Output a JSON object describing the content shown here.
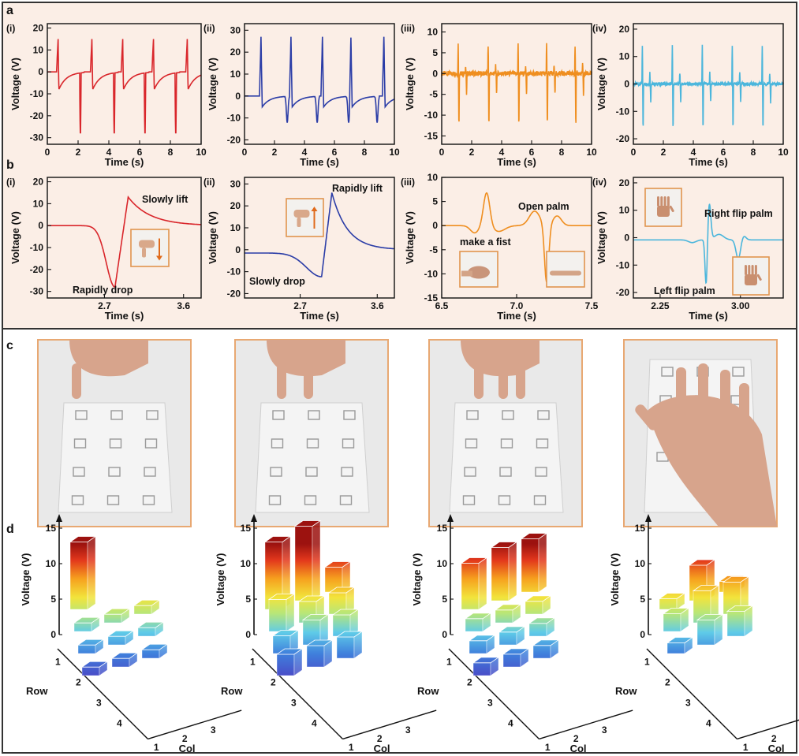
{
  "figure": {
    "panel_letters": [
      "a",
      "b",
      "c",
      "d"
    ],
    "colors": {
      "bg_ab": "#fbeee6",
      "panel_border": "#333333",
      "photo_frame": "#e8a872",
      "inset_frame": "#e0954f",
      "series": [
        "#d9262b",
        "#2b3da7",
        "#ef8e1f",
        "#4bb6dc"
      ]
    }
  },
  "chart_data": [
    {
      "id": "a-i",
      "type": "line",
      "label": "(i)",
      "xlabel": "Time (s)",
      "ylabel": "Voltage (V)",
      "xlim": [
        0,
        10
      ],
      "ylim": [
        -33,
        22
      ],
      "xticks": [
        0,
        2,
        4,
        6,
        8,
        10
      ],
      "yticks": [
        20,
        10,
        0,
        -10,
        -20,
        -30
      ],
      "color": "#d9262b",
      "shape": "rect",
      "events": [
        0.7,
        2.9,
        4.9,
        6.9,
        9.1
      ],
      "peak_pos": 15,
      "peak_neg": -28
    },
    {
      "id": "a-ii",
      "type": "line",
      "label": "(ii)",
      "xlabel": "Time (s)",
      "ylabel": "",
      "xlim": [
        0,
        10
      ],
      "ylim": [
        -22,
        33
      ],
      "xticks": [
        0,
        2,
        4,
        6,
        8,
        10
      ],
      "yticks": [
        30,
        20,
        10,
        0,
        -10,
        -20
      ],
      "color": "#2b3da7",
      "shape": "rect",
      "events": [
        1.1,
        3.1,
        5.2,
        7.1,
        9.3
      ],
      "peak_pos": 27,
      "peak_neg": -12
    },
    {
      "id": "a-iii",
      "type": "line",
      "label": "(iii)",
      "xlabel": "Time (s)",
      "ylabel": "",
      "xlim": [
        0,
        10
      ],
      "ylim": [
        -17,
        12
      ],
      "xticks": [
        0,
        2,
        4,
        6,
        8,
        10
      ],
      "yticks": [
        10,
        5,
        0,
        -5,
        -10,
        -15
      ],
      "color": "#ef8e1f",
      "shape": "spike",
      "events": [
        1.1,
        3.1,
        5.1,
        7.0,
        8.9
      ],
      "peak_pos": 7,
      "peak_neg": -13
    },
    {
      "id": "a-iv",
      "type": "line",
      "label": "(iv)",
      "xlabel": "Time (s)",
      "ylabel": "",
      "xlim": [
        0,
        10
      ],
      "ylim": [
        -22,
        22
      ],
      "xticks": [
        0,
        2,
        4,
        6,
        8,
        10
      ],
      "yticks": [
        20,
        10,
        0,
        -10,
        -20
      ],
      "color": "#4bb6dc",
      "shape": "spike",
      "events": [
        0.6,
        2.6,
        4.6,
        6.6,
        8.6
      ],
      "peak_pos": 14,
      "peak_neg": -17
    },
    {
      "id": "b-i",
      "type": "line",
      "label": "(i)",
      "xlabel": "Time (s)",
      "ylabel": "Voltage (V)",
      "xlim": [
        2.05,
        3.8
      ],
      "ylim": [
        -33,
        22
      ],
      "xticks": [
        2.7,
        3.6
      ],
      "yticks": [
        20,
        10,
        0,
        -10,
        -20,
        -30
      ],
      "color": "#d9262b",
      "shape": "single_rect",
      "center": 2.82,
      "peak_pos": 13,
      "peak_neg": -28,
      "annotations": [
        "Slowly lift",
        "Rapidly drop"
      ]
    },
    {
      "id": "b-ii",
      "type": "line",
      "label": "(ii)",
      "xlabel": "Time (s)",
      "ylabel": "",
      "xlim": [
        2.05,
        3.8
      ],
      "ylim": [
        -22,
        33
      ],
      "xticks": [
        2.7,
        3.6
      ],
      "yticks": [
        30,
        20,
        10,
        0,
        -10,
        -20
      ],
      "color": "#2b3da7",
      "shape": "single_rect",
      "center": 2.95,
      "peak_pos": 26,
      "peak_neg": -12,
      "annotations": [
        "Rapidly lift",
        "Slowly drop"
      ]
    },
    {
      "id": "b-iii",
      "type": "line",
      "label": "(iii)",
      "xlabel": "Time (s)",
      "ylabel": "",
      "xlim": [
        6.5,
        7.5
      ],
      "ylim": [
        -15,
        10
      ],
      "xticks": [
        6.5,
        7.0,
        7.5
      ],
      "tick_labels": [
        "6.5",
        "7.0",
        "7.5"
      ],
      "yticks": [
        10,
        5,
        0,
        -5,
        -10,
        -15
      ],
      "color": "#ef8e1f",
      "shape": "fist_palm",
      "peak_pos": 7,
      "peak_neg": -12,
      "annotations": [
        "Open palm",
        "make a fist"
      ]
    },
    {
      "id": "b-iv",
      "type": "line",
      "label": "(iv)",
      "xlabel": "Time (s)",
      "ylabel": "",
      "xlim": [
        2.0,
        3.4
      ],
      "ylim": [
        -22,
        22
      ],
      "xticks": [
        2.25,
        3.0
      ],
      "tick_labels": [
        "2.25",
        "3.00"
      ],
      "yticks": [
        20,
        10,
        0,
        -10,
        -20
      ],
      "color": "#4bb6dc",
      "shape": "flip",
      "peak_pos": 13,
      "peak_neg": -17,
      "annotations": [
        "Right flip palm",
        "Left flip palm"
      ]
    },
    {
      "id": "d-1",
      "type": "bar3d",
      "zlabel": "Voltage (V)",
      "xlabel": "Col",
      "ylabel": "Row",
      "zticks": [
        15,
        10,
        5,
        0
      ],
      "rows": [
        "1",
        "2",
        "3",
        "4"
      ],
      "cols": [
        "1",
        "2",
        "3"
      ],
      "values": [
        [
          9.5,
          0,
          0
        ],
        [
          1.2,
          1.2,
          1.2
        ],
        [
          1.2,
          1.2,
          1.2
        ],
        [
          1.2,
          1.2,
          1.2
        ]
      ],
      "zlabel_shown": true
    },
    {
      "id": "d-2",
      "type": "bar3d",
      "zlabel": "Voltage (V)",
      "xlabel": "Col",
      "ylabel": "Row",
      "zticks": [
        15,
        10,
        5,
        0
      ],
      "rows": [
        "1",
        "2",
        "3",
        "4"
      ],
      "cols": [
        "1",
        "2",
        "3"
      ],
      "values": [
        [
          9.5,
          10.5,
          3.5
        ],
        [
          4.5,
          3.0,
          3.0
        ],
        [
          2.5,
          3.5,
          3.0
        ],
        [
          3.0,
          3.0,
          3.0
        ]
      ],
      "zlabel_shown": true
    },
    {
      "id": "d-3",
      "type": "bar3d",
      "zlabel": "Voltage (V)",
      "xlabel": "Col",
      "ylabel": "Row",
      "zticks": [
        15,
        10,
        5,
        0
      ],
      "rows": [
        "1",
        "2",
        "3",
        "4"
      ],
      "cols": [
        "1",
        "2",
        "3"
      ],
      "values": [
        [
          6.5,
          7.5,
          7.5
        ],
        [
          1.8,
          1.8,
          1.8
        ],
        [
          1.8,
          1.8,
          1.8
        ],
        [
          1.8,
          1.8,
          1.8
        ]
      ],
      "zlabel_shown": true
    },
    {
      "id": "d-4",
      "type": "bar3d",
      "zlabel": "Voltage (V)",
      "xlabel": "Col",
      "ylabel": "Row",
      "zticks": [
        15,
        10,
        5,
        0
      ],
      "rows": [
        "1",
        "2",
        "3",
        "4"
      ],
      "cols": [
        "1",
        "2",
        "3"
      ],
      "values": [
        [
          1.5,
          5.0,
          1.5
        ],
        [
          2.5,
          4.5,
          4.5
        ],
        [
          1.5,
          3.5,
          3.5
        ],
        [
          0,
          0,
          0
        ]
      ],
      "zlabel_shown": true
    }
  ]
}
